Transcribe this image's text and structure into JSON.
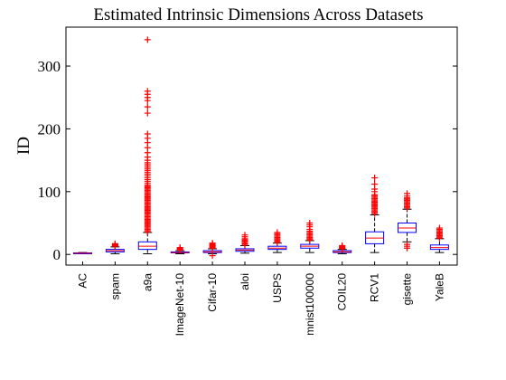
{
  "chart_data": {
    "type": "box",
    "title": "Estimated Intrinsic Dimensions Across Datasets",
    "ylabel": "ID",
    "xlabel": "",
    "ylim": [
      -17,
      362
    ],
    "yticks": [
      0,
      100,
      200,
      300
    ],
    "grid": false,
    "colors": {
      "box": "#0000ff",
      "median": "#ff0000",
      "outlier": "#ff0000",
      "whisker": "#000000"
    },
    "categories": [
      "AC",
      "spam",
      "a9a",
      "ImageNet-10",
      "Cifar-10",
      "aloi",
      "USPS",
      "mnist100000",
      "COIL20",
      "RCV1",
      "gisette",
      "YaleB"
    ],
    "boxes": [
      {
        "category": "AC",
        "whisker_low": 1,
        "q1": 1.5,
        "median": 2,
        "q3": 2.5,
        "whisker_high": 3,
        "outliers": []
      },
      {
        "category": "spam",
        "whisker_low": 1,
        "q1": 4,
        "median": 6,
        "q3": 8,
        "whisker_high": 12,
        "outliers": [
          13,
          14,
          15,
          16,
          17
        ]
      },
      {
        "category": "a9a",
        "whisker_low": 1,
        "q1": 8,
        "median": 13,
        "q3": 20,
        "whisker_high": 35,
        "outliers": [
          36,
          38,
          40,
          42,
          44,
          46,
          48,
          50,
          52,
          54,
          56,
          58,
          60,
          62,
          64,
          66,
          68,
          70,
          72,
          74,
          76,
          78,
          80,
          82,
          84,
          86,
          88,
          90,
          92,
          94,
          96,
          98,
          100,
          102,
          104,
          106,
          108,
          110,
          113,
          116,
          119,
          122,
          125,
          128,
          131,
          134,
          137,
          140,
          143,
          146,
          150,
          155,
          162,
          170,
          178,
          185,
          192,
          225,
          235,
          245,
          250,
          255,
          260,
          342
        ]
      },
      {
        "category": "ImageNet-10",
        "whisker_low": 1,
        "q1": 2.5,
        "median": 3,
        "q3": 4,
        "whisker_high": 6,
        "outliers": [
          7,
          8,
          9,
          10,
          11
        ]
      },
      {
        "category": "Cifar-10",
        "whisker_low": 1,
        "q1": 3,
        "median": 4,
        "q3": 6,
        "whisker_high": 9,
        "outliers": [
          -2,
          10,
          11,
          12,
          13,
          14,
          15,
          16,
          17,
          18
        ]
      },
      {
        "category": "aloi",
        "whisker_low": 2,
        "q1": 5,
        "median": 7,
        "q3": 9,
        "whisker_high": 14,
        "outliers": [
          15,
          17,
          19,
          21,
          23,
          25,
          28,
          31
        ]
      },
      {
        "category": "USPS",
        "whisker_low": 3,
        "q1": 8,
        "median": 10,
        "q3": 13,
        "whisker_high": 18,
        "outliers": [
          19,
          21,
          23,
          25,
          27,
          29,
          31,
          33,
          35
        ]
      },
      {
        "category": "mnist100000",
        "whisker_low": 3,
        "q1": 10,
        "median": 13,
        "q3": 16,
        "whisker_high": 22,
        "outliers": [
          23,
          25,
          27,
          29,
          31,
          33,
          35,
          37,
          40,
          44,
          47,
          50
        ]
      },
      {
        "category": "COIL20",
        "whisker_low": 1,
        "q1": 3,
        "median": 4,
        "q3": 6,
        "whisker_high": 8,
        "outliers": [
          9,
          10,
          11,
          12,
          13,
          14
        ]
      },
      {
        "category": "RCV1",
        "whisker_low": 3,
        "q1": 17,
        "median": 26,
        "q3": 36,
        "whisker_high": 63,
        "outliers": [
          65,
          67,
          69,
          71,
          73,
          75,
          77,
          79,
          81,
          83,
          85,
          87,
          89,
          91,
          93,
          95,
          100,
          104,
          112,
          122
        ]
      },
      {
        "category": "gisette",
        "whisker_low": 20,
        "q1": 35,
        "median": 42,
        "q3": 50,
        "whisker_high": 72,
        "outliers": [
          10,
          13,
          16,
          74,
          76,
          78,
          80,
          82,
          84,
          86,
          88,
          90,
          93,
          97
        ]
      },
      {
        "category": "YaleB",
        "whisker_low": 3,
        "q1": 8,
        "median": 11,
        "q3": 15,
        "whisker_high": 25,
        "outliers": [
          26,
          28,
          30,
          32,
          34,
          36,
          38,
          40,
          42
        ]
      }
    ]
  }
}
